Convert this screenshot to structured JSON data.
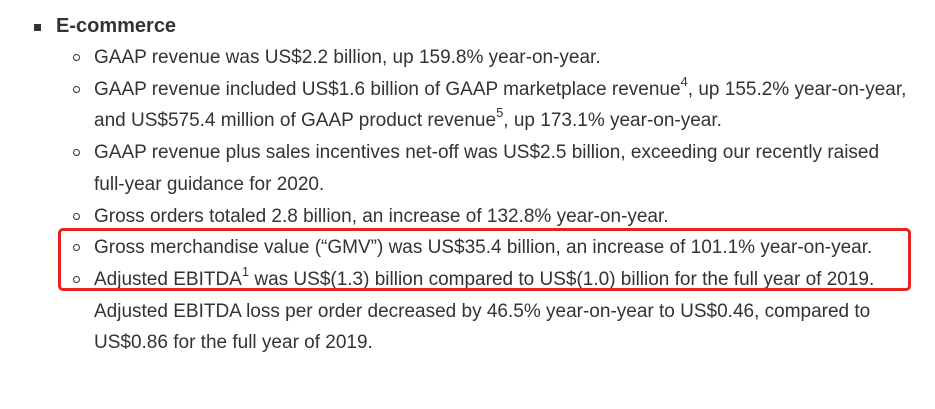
{
  "section": {
    "title": "E-commerce"
  },
  "items": [
    {
      "text": "GAAP revenue was US$2.2 billion, up 159.8% year-on-year."
    },
    {
      "part1": "GAAP revenue included US$1.6 billion of GAAP marketplace revenue",
      "sup1": "4",
      "part2": ", up 155.2% year-on-year, and US$575.4 million of GAAP product revenue",
      "sup2": "5",
      "part3": ", up 173.1% year-on-year."
    },
    {
      "text": "GAAP revenue plus sales incentives net-off was US$2.5 billion, exceeding our recently raised full-year guidance for 2020."
    },
    {
      "text": "Gross orders totaled 2.8 billion, an increase of 132.8% year-on-year."
    },
    {
      "text": "Gross merchandise value (“GMV”) was US$35.4 billion, an increase of 101.1% year-on-year."
    },
    {
      "part1": "Adjusted EBITDA",
      "sup1": "1",
      "part2": " was US$(1.3) billion compared to US$(1.0) billion for the full year of 2019. Adjusted EBITDA loss per order decreased by 46.5% year-on-year to US$0.46, compared to US$0.86 for the full year of 2019."
    }
  ],
  "highlight": {
    "color": "#e8231f"
  }
}
